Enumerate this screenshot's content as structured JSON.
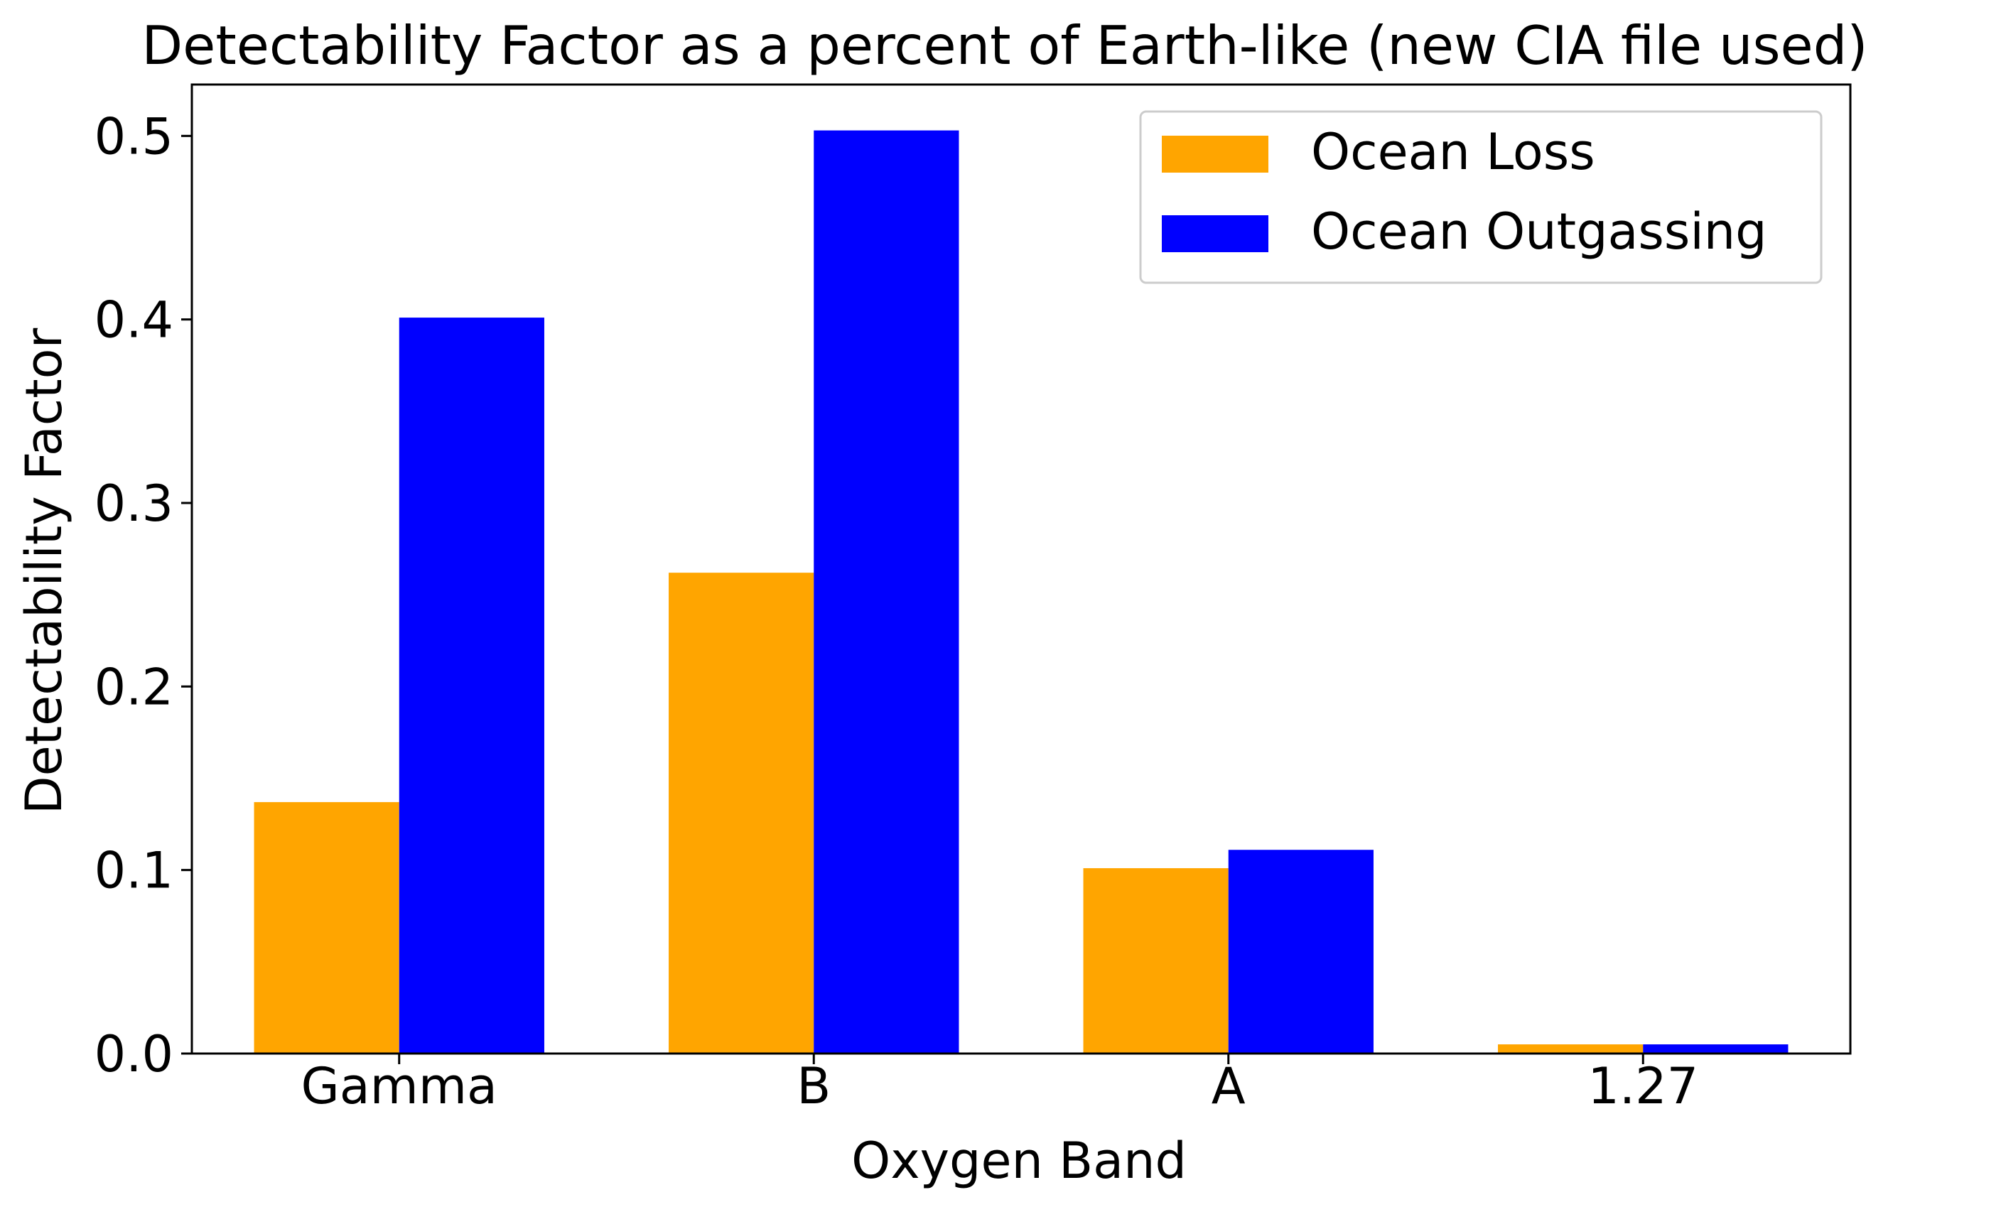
{
  "chart_data": {
    "type": "bar",
    "title": "Detectability Factor as a percent of Earth-like (new CIA file used)",
    "xlabel": "Oxygen Band",
    "ylabel": "Detectability Factor",
    "categories": [
      "Gamma",
      "B",
      "A",
      "1.27"
    ],
    "series": [
      {
        "name": "Ocean Loss",
        "color": "#FFA500",
        "values": [
          0.137,
          0.262,
          0.101,
          0.005
        ]
      },
      {
        "name": "Ocean Outgassing",
        "color": "#0000FF",
        "values": [
          0.401,
          0.503,
          0.111,
          0.005
        ]
      }
    ],
    "ylim": [
      0,
      0.528
    ],
    "yticks": [
      0.0,
      0.1,
      0.2,
      0.3,
      0.4,
      0.5
    ],
    "ytick_labels": [
      "0.0",
      "0.1",
      "0.2",
      "0.3",
      "0.4",
      "0.5"
    ],
    "grid": false,
    "legend_position": "top-right"
  }
}
